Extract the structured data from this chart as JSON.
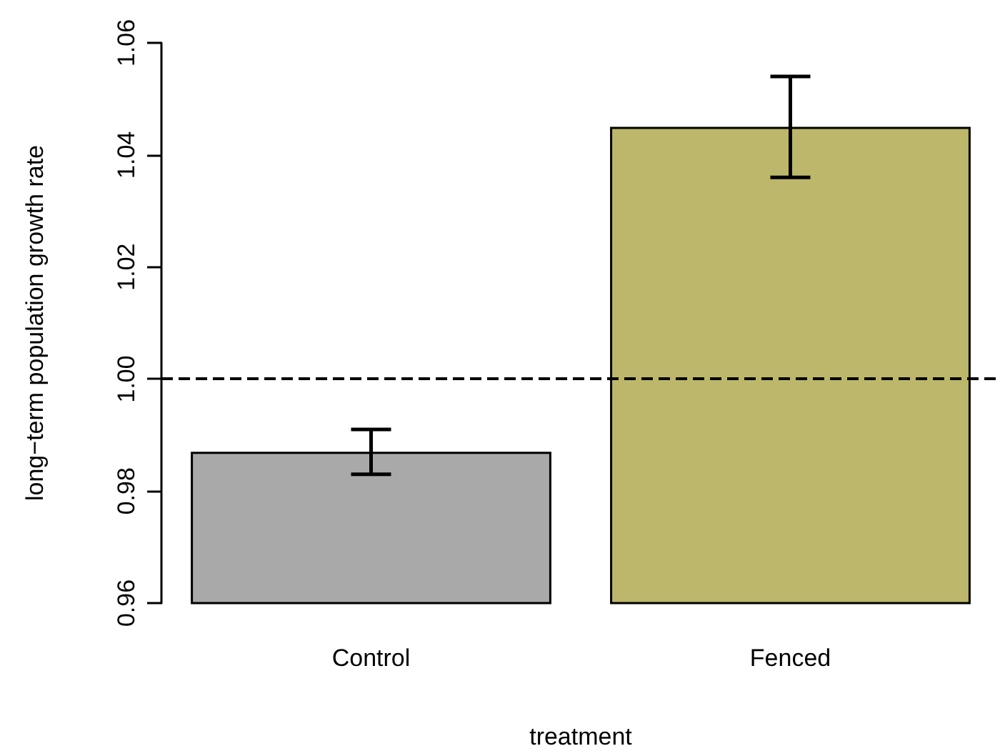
{
  "chart_data": {
    "type": "bar",
    "xlabel": "treatment",
    "ylabel": "long−term population growth rate",
    "categories": [
      "Control",
      "Fenced"
    ],
    "values": [
      0.987,
      1.045
    ],
    "colors": [
      "#a9a9a9",
      "#bdb76b"
    ],
    "errors": [
      [
        0.983,
        0.991
      ],
      [
        1.036,
        1.054
      ]
    ],
    "ylim": [
      0.96,
      1.06
    ],
    "yticks": [
      0.96,
      0.98,
      {
        "value": 1.0,
        "label": "1.00"
      },
      1.02,
      1.04,
      1.06
    ],
    "ref_lines": [
      {
        "axis": "y",
        "value": 1.0,
        "line_style": "dashed",
        "color": "#000000"
      }
    ],
    "grid": false
  }
}
